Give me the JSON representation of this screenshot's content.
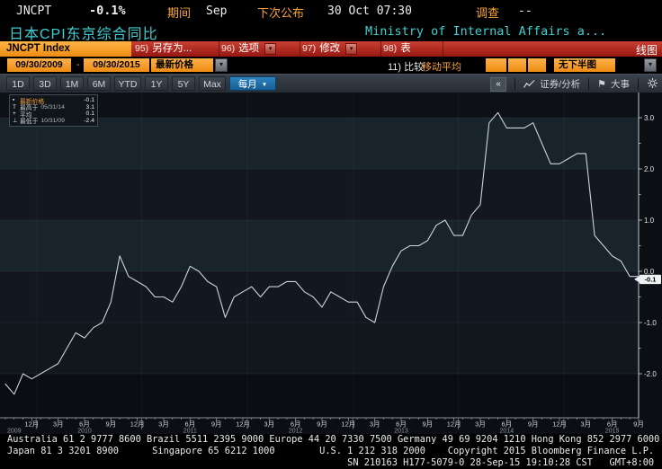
{
  "colors": {
    "amber": "#f79a28",
    "toolbar_red": "#a81d15",
    "title_cyan": "#40cfd2",
    "tab_blue": "#1d6fad",
    "line": "#cdd3d9",
    "badge_bg": "#eef0f1",
    "box_orange": "#f59c27"
  },
  "icons": {
    "caret_down": "▾",
    "triangle_down": "▼",
    "collapse": "«",
    "flag": "⚑"
  },
  "header": {
    "ticker": "JNCPT",
    "last_change": "-0.1%",
    "period_label": "期间",
    "period_value": "Sep",
    "next_release_label": "下次公布",
    "next_release_value": "30 Oct 07:30",
    "survey_label": "调查",
    "survey_value": "--",
    "security_title": "日本CPI东京综合同比",
    "source": "Ministry of Internal Affairs a..."
  },
  "toolbar": {
    "ticker_field": "JNCPT Index",
    "buttons": [
      {
        "num": "95)",
        "label": "另存为...",
        "caret": false
      },
      {
        "num": "96)",
        "label": "选项",
        "caret": true
      },
      {
        "num": "97)",
        "label": "修改",
        "caret": true
      },
      {
        "num": "98)",
        "label": "表",
        "caret": false
      }
    ],
    "chart_type": "线图"
  },
  "controls": {
    "date_from": "09/30/2009",
    "date_separator": "-",
    "date_to": "09/30/2015",
    "price_mode": "最新价格",
    "compare_label": "11) 比较",
    "moving_avg_label": "移动平均",
    "lower_panel": "无下半图"
  },
  "tabs": {
    "ranges": [
      "1D",
      "3D",
      "1M",
      "6M",
      "YTD",
      "1Y",
      "5Y",
      "Max"
    ],
    "frequency": "每月",
    "analysis_label": "证券/分析",
    "events_label": "大事"
  },
  "legend": {
    "rows": [
      {
        "marker": "▪",
        "label": "最新价格",
        "date": "",
        "value": "-0.1",
        "accent": true
      },
      {
        "marker": "T",
        "label": "最高于",
        "date": "05/31/14",
        "value": "3.1",
        "accent": false
      },
      {
        "marker": "+",
        "label": "平均",
        "date": "",
        "value": "0.1",
        "accent": false
      },
      {
        "marker": "⊥",
        "label": "最低于",
        "date": "10/31/09",
        "value": "-2.4",
        "accent": false
      }
    ]
  },
  "chart_data": {
    "type": "line",
    "title": "日本CPI东京综合同比",
    "ticker": "JNCPT Index",
    "frequency": "monthly",
    "x_range": [
      "2009-09",
      "2015-09"
    ],
    "values": [
      -2.2,
      -2.4,
      -2.0,
      -2.1,
      -2.0,
      -1.9,
      -1.8,
      -1.5,
      -1.2,
      -1.3,
      -1.1,
      -1.0,
      -0.6,
      0.3,
      -0.1,
      -0.2,
      -0.3,
      -0.5,
      -0.5,
      -0.6,
      -0.3,
      0.1,
      0.0,
      -0.2,
      -0.3,
      -0.9,
      -0.5,
      -0.4,
      -0.3,
      -0.5,
      -0.3,
      -0.3,
      -0.2,
      -0.2,
      -0.4,
      -0.5,
      -0.7,
      -0.4,
      -0.5,
      -0.6,
      -0.6,
      -0.9,
      -1.0,
      -0.3,
      0.1,
      0.4,
      0.5,
      0.5,
      0.6,
      0.9,
      1.0,
      0.7,
      0.7,
      1.1,
      1.3,
      2.9,
      3.1,
      2.8,
      2.8,
      2.8,
      2.9,
      2.5,
      2.1,
      2.1,
      2.2,
      2.3,
      2.3,
      0.7,
      0.5,
      0.3,
      0.2,
      -0.1,
      -0.1
    ],
    "last": -0.1,
    "last_label": "-0.1",
    "high": 3.1,
    "high_date": "05/31/14",
    "low": -2.4,
    "low_date": "10/31/09",
    "mean": 0.1,
    "ylim": [
      -2.8,
      3.5
    ],
    "yticks": [
      3.0,
      2.0,
      1.0,
      0.0,
      -1.0,
      -2.0
    ],
    "xtick_cycle": [
      "12月",
      "3月",
      "6月",
      "9月"
    ],
    "year_ticks": [
      {
        "i": 1,
        "label": "2009"
      },
      {
        "i": 9,
        "label": "2010"
      },
      {
        "i": 21,
        "label": "2011"
      },
      {
        "i": 33,
        "label": "2012"
      },
      {
        "i": 45,
        "label": "2013"
      },
      {
        "i": 57,
        "label": "2014"
      },
      {
        "i": 69,
        "label": "2015"
      }
    ],
    "legend_position": "top-left",
    "grid": "horizontal-bands"
  },
  "footer": {
    "lines": [
      "Australia 61 2 9777 8600 Brazil 5511 2395 9000 Europe 44 20 7330 7500 Germany 49 69 9204 1210 Hong Kong 852 2977 6000",
      "Japan 81 3 3201 8900      Singapore 65 6212 1000        U.S. 1 212 318 2000    Copyright 2015 Bloomberg Finance L.P.",
      "                                                             SN 210163 H177-5079-0 28-Sep-15 19:10:28 CST   GMT+8:00"
    ]
  }
}
